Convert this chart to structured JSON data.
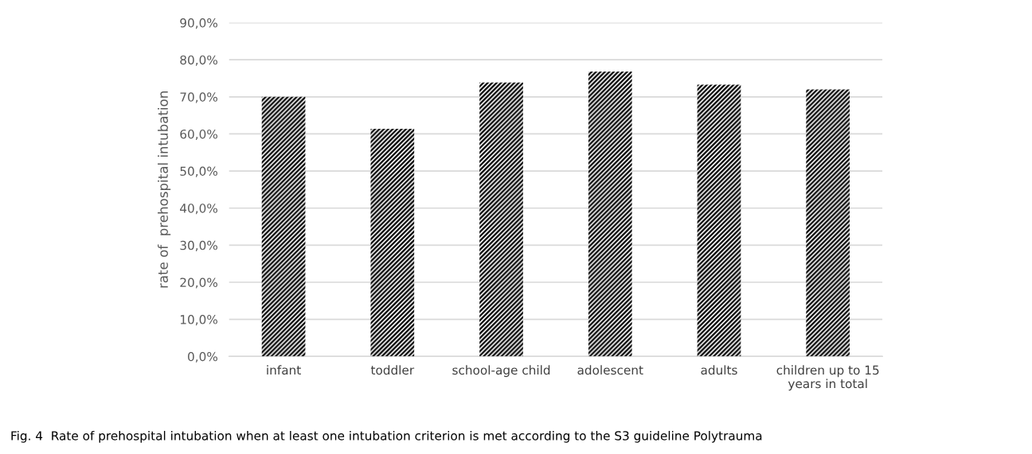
{
  "chart_data": {
    "type": "bar",
    "ylabel": "rate of  prehospital intubation",
    "categories": [
      "infant",
      "toddler",
      "school-age child",
      "adolescent",
      "adults",
      "children up to 15\nyears in total"
    ],
    "values": [
      70.0,
      61.4,
      73.9,
      76.8,
      73.3,
      72.0
    ],
    "color": "#000000",
    "ylim": [
      0,
      90
    ],
    "yticks": [
      {
        "value": 0,
        "label": "0,0%"
      },
      {
        "value": 10,
        "label": "10,0%"
      },
      {
        "value": 20,
        "label": "20,0%"
      },
      {
        "value": 30,
        "label": "30,0%"
      },
      {
        "value": 40,
        "label": "40,0%"
      },
      {
        "value": 50,
        "label": "50,0%"
      },
      {
        "value": 60,
        "label": "60,0%"
      },
      {
        "value": 70,
        "label": "70,0%"
      },
      {
        "value": 80,
        "label": "80,0%"
      },
      {
        "value": 90,
        "label": "90,0%"
      }
    ],
    "grid": "y",
    "annotations": [
      "Fig. 4  Rate of prehospital intubation when at least one intubation criterion is met according to the S3 guideline Polytrauma"
    ]
  }
}
